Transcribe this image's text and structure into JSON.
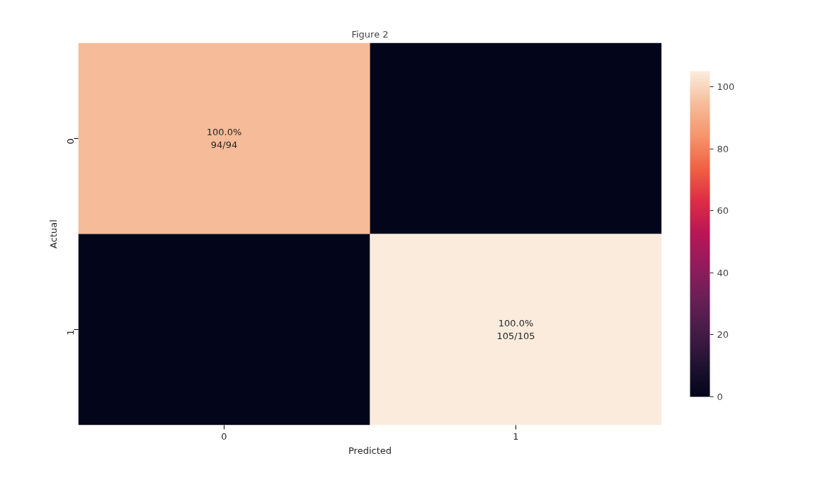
{
  "chart_data": {
    "type": "heatmap",
    "title": "Figure 2",
    "xlabel": "Predicted",
    "ylabel": "Actual",
    "categories": [
      "0",
      "1"
    ],
    "y_categories": [
      "0",
      "1"
    ],
    "cells": [
      [
        94,
        0
      ],
      [
        0,
        105
      ]
    ],
    "cell_labels": [
      [
        "100.0%\n94/94",
        null
      ],
      [
        null,
        "100.0%\n105/105"
      ]
    ],
    "clim": [
      0,
      105
    ],
    "cticks": [
      0,
      20,
      40,
      60,
      80,
      100
    ],
    "grid": false
  }
}
